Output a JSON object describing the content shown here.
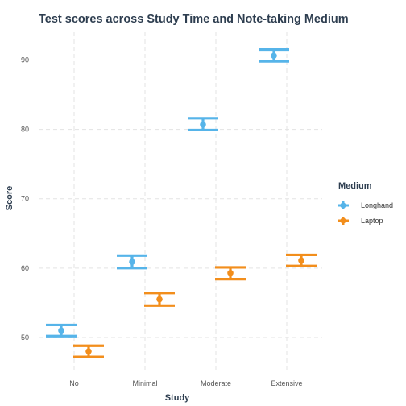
{
  "chart_data": {
    "type": "errorbar",
    "title": "Test scores across Study Time and Note-taking Medium",
    "xlabel": "Study",
    "ylabel": "Score",
    "categories": [
      "No",
      "Minimal",
      "Moderate",
      "Extensive"
    ],
    "ylim": [
      45,
      94
    ],
    "yticks": [
      50,
      60,
      70,
      80,
      90
    ],
    "grid": true,
    "legend": {
      "title": "Medium",
      "position": "right"
    },
    "series": [
      {
        "name": "Longhand",
        "color": "#56b4e9",
        "mean": [
          51.0,
          60.9,
          80.7,
          90.6
        ],
        "lower": [
          50.2,
          60.0,
          79.9,
          89.8
        ],
        "upper": [
          51.8,
          61.8,
          81.6,
          91.5
        ]
      },
      {
        "name": "Laptop",
        "color": "#f28e1c",
        "mean": [
          48.0,
          55.5,
          59.3,
          61.1
        ],
        "lower": [
          47.2,
          54.6,
          58.4,
          60.3
        ],
        "upper": [
          48.8,
          56.4,
          60.1,
          61.9
        ]
      }
    ]
  }
}
